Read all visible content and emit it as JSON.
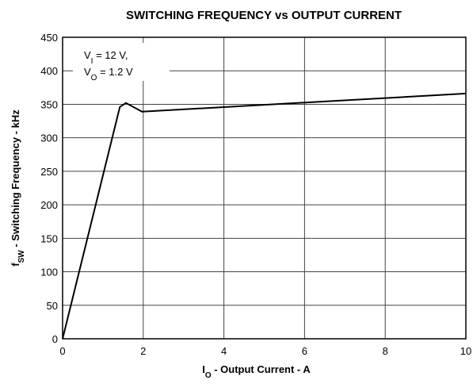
{
  "chart_data": {
    "type": "line",
    "title": "SWITCHING FREQUENCY vs OUTPUT CURRENT",
    "x_label": [
      "I",
      "O",
      " - Output Current - A"
    ],
    "y_label": [
      "f",
      "SW",
      " - Switching Frequency - kHz"
    ],
    "annotation": [
      [
        "V",
        "I",
        " = 12 V,"
      ],
      [
        "V",
        "O",
        " = 1.2 V"
      ]
    ],
    "x": [
      0,
      1.42,
      1.57,
      1.97,
      10
    ],
    "series": [
      {
        "color": "#000000",
        "values": [
          0,
          346,
          352,
          339,
          366
        ]
      }
    ],
    "xlim": [
      0,
      10
    ],
    "xticks": [
      0,
      2,
      4,
      6,
      8,
      10
    ],
    "ylim": [
      0,
      450
    ],
    "yticks": [
      0,
      50,
      100,
      150,
      200,
      250,
      300,
      350,
      400,
      450
    ],
    "grid": true
  }
}
